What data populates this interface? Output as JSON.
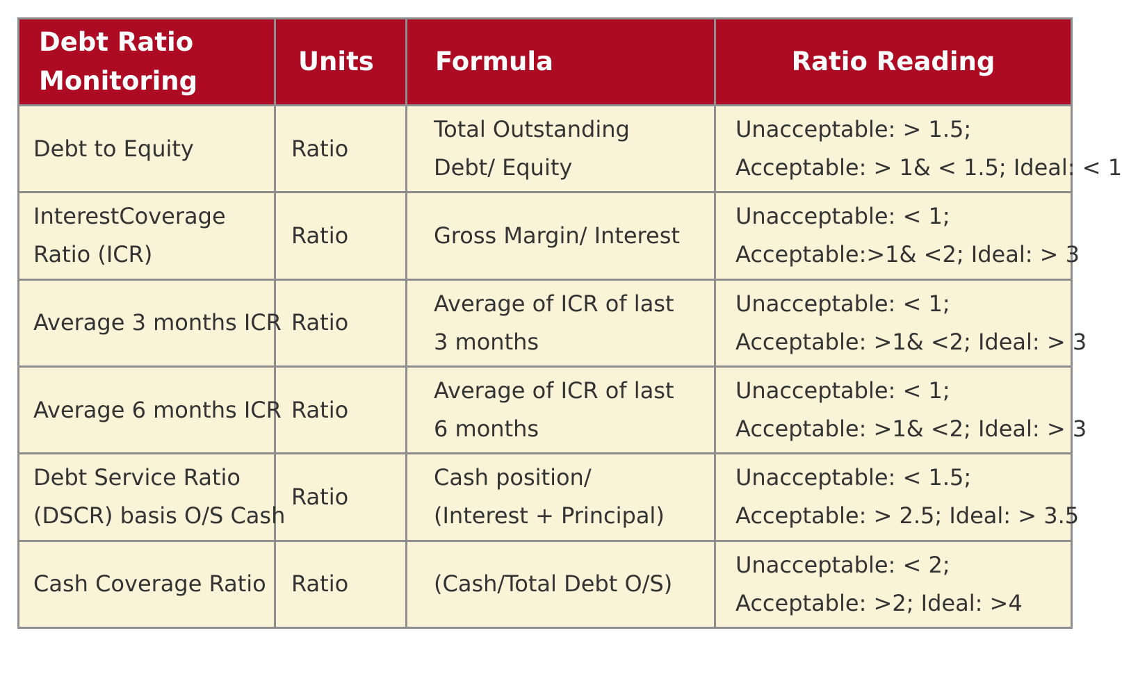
{
  "table": {
    "headers": {
      "col1_line1": "Debt Ratio",
      "col1_line2": "Monitoring",
      "col2": "Units",
      "col3": "Formula",
      "col4": "Ratio Reading"
    },
    "rows": [
      {
        "name_lines": [
          "Debt to Equity"
        ],
        "units": "Ratio",
        "formula_lines": [
          "Total Outstanding",
          "Debt/ Equity"
        ],
        "reading_lines": [
          "Unacceptable: > 1.5;",
          "Acceptable: > 1& < 1.5; Ideal: < 1"
        ]
      },
      {
        "name_lines": [
          "InterestCoverage",
          "Ratio (ICR)"
        ],
        "units": "Ratio",
        "formula_lines": [
          "Gross Margin/ Interest"
        ],
        "reading_lines": [
          "Unacceptable: < 1;",
          "Acceptable:>1& <2; Ideal: > 3"
        ]
      },
      {
        "name_lines": [
          "Average 3 months ICR"
        ],
        "units": "Ratio",
        "formula_lines": [
          "Average of ICR of last",
          "3 months"
        ],
        "reading_lines": [
          "Unacceptable: < 1;",
          "Acceptable: >1& <2; Ideal: > 3"
        ]
      },
      {
        "name_lines": [
          "Average 6 months ICR"
        ],
        "units": "Ratio",
        "formula_lines": [
          "Average of ICR of last",
          "6 months"
        ],
        "reading_lines": [
          "Unacceptable: < 1;",
          "Acceptable: >1& <2; Ideal: > 3"
        ]
      },
      {
        "name_lines": [
          "Debt Service Ratio",
          "(DSCR) basis O/S Cash"
        ],
        "units": "Ratio",
        "formula_lines": [
          "Cash position/",
          "(Interest + Principal)"
        ],
        "reading_lines": [
          "Unacceptable: < 1.5;",
          "Acceptable: > 2.5; Ideal: > 3.5"
        ]
      },
      {
        "name_lines": [
          "Cash Coverage Ratio"
        ],
        "units": "Ratio",
        "formula_lines": [
          "(Cash/Total Debt O/S)"
        ],
        "reading_lines": [
          "Unacceptable: < 2;",
          "Acceptable: >2; Ideal: >4"
        ]
      }
    ]
  },
  "colors": {
    "header_bg": "#ad0a23",
    "header_text": "#ffffff",
    "cell_bg": "#f9f3d8",
    "cell_text": "#333333",
    "border": "#8e8e8e"
  }
}
